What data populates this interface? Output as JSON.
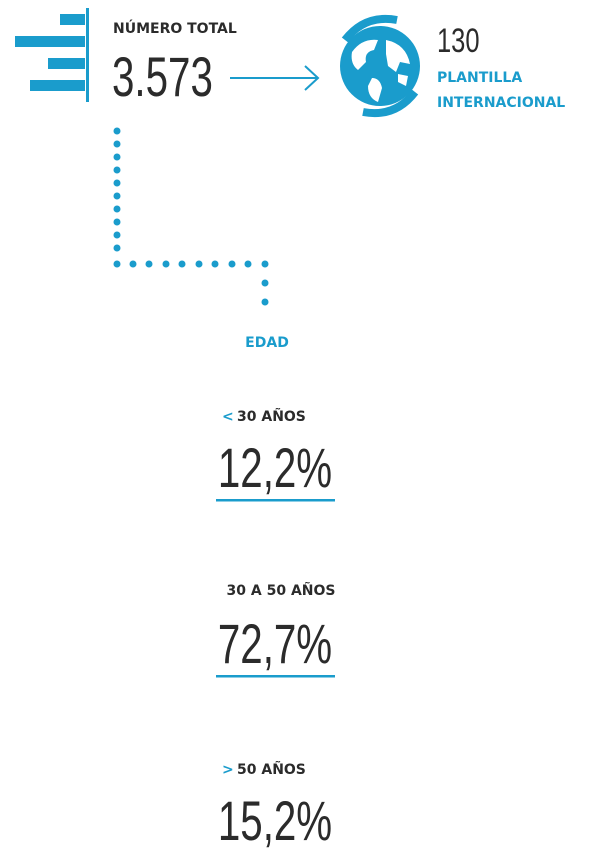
{
  "total": {
    "label": "NÚMERO TOTAL",
    "value": "3.573"
  },
  "international": {
    "value": "130",
    "label_lines": [
      "PLANTILLA",
      "INTERNACIONAL"
    ]
  },
  "age": {
    "title": "EDAD",
    "groups": [
      {
        "symbol": "<",
        "label": "30 AÑOS",
        "value": "12,2%"
      },
      {
        "label": "30 A 50 AÑOS",
        "value": "72,7%"
      },
      {
        "symbol": ">",
        "label": "50 AÑOS",
        "value": "15,2%"
      }
    ]
  }
}
